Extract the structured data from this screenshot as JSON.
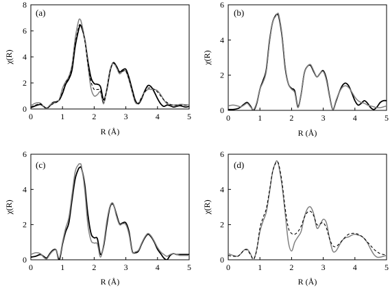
{
  "chart_data": [
    {
      "type": "line",
      "panel_label": "(a)",
      "xlabel": "R (Å)",
      "ylabel": "χ(R)",
      "xlim": [
        0,
        5
      ],
      "ylim": [
        0,
        8
      ],
      "xticks": [
        0,
        1,
        2,
        3,
        4,
        5
      ],
      "yticks": [
        0,
        2,
        4,
        6,
        8
      ],
      "series": [
        {
          "style": "black-solid",
          "color": "#000000",
          "x": [
            0,
            0.15,
            0.3,
            0.4,
            0.5,
            0.6,
            0.7,
            0.8,
            0.9,
            1.0,
            1.1,
            1.2,
            1.3,
            1.4,
            1.5,
            1.55,
            1.6,
            1.7,
            1.8,
            1.9,
            2.0,
            2.1,
            2.2,
            2.3,
            2.4,
            2.5,
            2.6,
            2.7,
            2.8,
            2.9,
            3.0,
            3.1,
            3.2,
            3.3,
            3.4,
            3.5,
            3.6,
            3.7,
            3.8,
            3.9,
            4.0,
            4.1,
            4.2,
            4.3,
            4.4,
            4.5,
            4.6,
            4.7,
            4.8,
            4.9,
            5.0
          ],
          "y": [
            0.1,
            0.25,
            0.35,
            0.2,
            0.05,
            0.25,
            0.5,
            0.55,
            0.7,
            1.2,
            1.9,
            2.3,
            3.0,
            4.8,
            6.0,
            6.4,
            6.3,
            5.4,
            3.7,
            2.4,
            1.95,
            1.9,
            1.7,
            0.7,
            1.5,
            2.9,
            3.55,
            3.3,
            2.85,
            3.0,
            3.05,
            2.4,
            1.5,
            0.65,
            0.4,
            0.8,
            1.4,
            1.8,
            1.7,
            1.3,
            0.8,
            0.4,
            0.2,
            0.3,
            0.25,
            0.15,
            0.2,
            0.25,
            0.2,
            0.15,
            0.2
          ]
        },
        {
          "style": "gray-solid",
          "color": "#808080",
          "x": [
            0,
            0.15,
            0.3,
            0.4,
            0.5,
            0.6,
            0.7,
            0.8,
            0.9,
            1.0,
            1.1,
            1.2,
            1.3,
            1.4,
            1.5,
            1.55,
            1.6,
            1.7,
            1.8,
            1.9,
            2.0,
            2.1,
            2.2,
            2.3,
            2.4,
            2.5,
            2.6,
            2.7,
            2.8,
            2.9,
            3.0,
            3.1,
            3.2,
            3.3,
            3.4,
            3.5,
            3.6,
            3.7,
            3.8,
            3.9,
            4.0,
            4.1,
            4.2,
            4.3,
            4.4,
            4.5,
            4.6,
            4.7,
            4.8,
            4.9,
            5.0
          ],
          "y": [
            0.25,
            0.45,
            0.45,
            0.2,
            0.0,
            0.3,
            0.45,
            0.5,
            0.75,
            1.6,
            2.1,
            2.5,
            3.4,
            5.4,
            6.7,
            6.9,
            6.6,
            5.4,
            3.4,
            1.6,
            1.0,
            1.1,
            1.3,
            0.4,
            1.6,
            3.0,
            3.5,
            3.2,
            2.7,
            2.9,
            2.9,
            2.2,
            1.3,
            0.5,
            0.45,
            0.9,
            1.3,
            1.5,
            1.5,
            1.5,
            1.4,
            1.1,
            0.7,
            0.4,
            0.35,
            0.3,
            0.3,
            0.35,
            0.35,
            0.3,
            0.35
          ]
        },
        {
          "style": "black-dashed",
          "color": "#000000",
          "x": [
            0,
            0.15,
            0.3,
            0.4,
            0.5,
            0.6,
            0.7,
            0.8,
            0.9,
            1.0,
            1.1,
            1.2,
            1.3,
            1.4,
            1.5,
            1.55,
            1.6,
            1.7,
            1.8,
            1.9,
            2.0,
            2.1,
            2.2,
            2.3,
            2.4,
            2.5,
            2.6,
            2.7,
            2.8,
            2.9,
            3.0,
            3.1,
            3.2,
            3.3,
            3.4,
            3.5,
            3.6,
            3.7,
            3.8,
            3.9,
            4.0,
            4.1,
            4.2,
            4.3,
            4.4,
            4.5,
            4.6,
            4.7,
            4.8,
            4.9,
            5.0
          ],
          "y": [
            0.15,
            0.3,
            0.4,
            0.2,
            0.05,
            0.2,
            0.4,
            0.5,
            0.7,
            1.3,
            2.0,
            2.4,
            3.2,
            5.0,
            6.2,
            6.5,
            6.3,
            5.3,
            3.5,
            2.1,
            1.5,
            1.5,
            1.4,
            0.5,
            1.5,
            2.9,
            3.5,
            3.3,
            2.8,
            2.9,
            2.9,
            2.3,
            1.4,
            0.6,
            0.45,
            0.9,
            1.3,
            1.6,
            1.6,
            1.5,
            1.3,
            1.0,
            0.7,
            0.5,
            0.35,
            0.3,
            0.3,
            0.3,
            0.3,
            0.3,
            0.3
          ]
        }
      ]
    },
    {
      "type": "line",
      "panel_label": "(b)",
      "xlabel": "R (Å)",
      "ylabel": "χ(R)",
      "xlim": [
        0,
        5
      ],
      "ylim": [
        0,
        6
      ],
      "xticks": [
        0,
        1,
        2,
        3,
        4,
        5
      ],
      "yticks": [
        0,
        2,
        4,
        6
      ],
      "series": [
        {
          "style": "black-solid",
          "color": "#000000",
          "x": [
            0,
            0.15,
            0.3,
            0.4,
            0.5,
            0.6,
            0.7,
            0.8,
            0.9,
            1.0,
            1.1,
            1.2,
            1.3,
            1.4,
            1.5,
            1.55,
            1.6,
            1.7,
            1.8,
            1.9,
            2.0,
            2.1,
            2.2,
            2.3,
            2.4,
            2.5,
            2.6,
            2.7,
            2.8,
            2.9,
            3.0,
            3.1,
            3.2,
            3.3,
            3.4,
            3.5,
            3.6,
            3.7,
            3.8,
            3.9,
            4.0,
            4.1,
            4.2,
            4.3,
            4.4,
            4.5,
            4.6,
            4.7,
            4.8,
            4.9,
            5.0
          ],
          "y": [
            0.05,
            0.05,
            0.1,
            0.2,
            0.35,
            0.45,
            0.25,
            0.0,
            0.4,
            1.2,
            1.7,
            2.3,
            3.9,
            5.0,
            5.4,
            5.45,
            5.3,
            4.2,
            2.4,
            1.5,
            1.25,
            1.1,
            0.2,
            0.9,
            2.1,
            2.5,
            2.55,
            2.2,
            1.9,
            2.1,
            2.25,
            1.8,
            0.8,
            0.05,
            0.5,
            1.0,
            1.4,
            1.55,
            1.4,
            1.0,
            0.55,
            0.3,
            0.4,
            0.55,
            0.4,
            0.15,
            0.05,
            0.2,
            0.45,
            0.55,
            0.55
          ]
        },
        {
          "style": "gray-solid",
          "color": "#808080",
          "x": [
            0,
            0.15,
            0.3,
            0.4,
            0.5,
            0.6,
            0.7,
            0.8,
            0.9,
            1.0,
            1.1,
            1.2,
            1.3,
            1.4,
            1.5,
            1.55,
            1.6,
            1.7,
            1.8,
            1.9,
            2.0,
            2.1,
            2.2,
            2.3,
            2.4,
            2.5,
            2.6,
            2.7,
            2.8,
            2.9,
            3.0,
            3.1,
            3.2,
            3.3,
            3.4,
            3.5,
            3.6,
            3.7,
            3.8,
            3.9,
            4.0,
            4.1,
            4.2,
            4.3,
            4.4,
            4.5,
            4.6,
            4.7,
            4.8,
            4.9,
            5.0
          ],
          "y": [
            0.25,
            0.3,
            0.25,
            0.2,
            0.3,
            0.4,
            0.2,
            0.05,
            0.45,
            1.2,
            1.6,
            2.2,
            3.8,
            5.0,
            5.35,
            5.5,
            5.4,
            4.3,
            2.5,
            1.5,
            1.2,
            1.0,
            0.15,
            0.9,
            2.1,
            2.5,
            2.6,
            2.25,
            1.9,
            2.1,
            2.2,
            1.7,
            0.75,
            0.05,
            0.55,
            1.0,
            1.3,
            1.4,
            1.3,
            1.05,
            0.75,
            0.55,
            0.45,
            0.4,
            0.3,
            0.25,
            0.2,
            0.15,
            0.15,
            0.2,
            0.25
          ]
        }
      ]
    },
    {
      "type": "line",
      "panel_label": "(c)",
      "xlabel": "R (Å)",
      "ylabel": "χ(R)",
      "xlim": [
        0,
        5
      ],
      "ylim": [
        0,
        6
      ],
      "xticks": [
        0,
        1,
        2,
        3,
        4,
        5
      ],
      "yticks": [
        0,
        2,
        4,
        6
      ],
      "series": [
        {
          "style": "black-solid",
          "color": "#000000",
          "x": [
            0,
            0.15,
            0.3,
            0.4,
            0.5,
            0.6,
            0.7,
            0.8,
            0.9,
            1.0,
            1.1,
            1.2,
            1.3,
            1.4,
            1.5,
            1.55,
            1.6,
            1.7,
            1.8,
            1.9,
            2.0,
            2.1,
            2.2,
            2.3,
            2.4,
            2.5,
            2.6,
            2.7,
            2.8,
            2.9,
            3.0,
            3.1,
            3.2,
            3.3,
            3.4,
            3.5,
            3.6,
            3.7,
            3.8,
            3.9,
            4.0,
            4.1,
            4.2,
            4.3,
            4.4,
            4.5,
            4.6,
            4.7,
            4.8,
            4.9,
            5.0
          ],
          "y": [
            0.15,
            0.2,
            0.3,
            0.2,
            0.1,
            0.35,
            0.55,
            0.55,
            0.0,
            0.9,
            1.6,
            2.1,
            3.4,
            4.6,
            5.15,
            5.25,
            5.2,
            4.3,
            2.6,
            1.5,
            1.25,
            1.2,
            0.3,
            0.8,
            2.0,
            3.0,
            3.15,
            2.6,
            2.05,
            2.1,
            2.1,
            1.6,
            0.5,
            0.4,
            0.5,
            0.9,
            1.25,
            1.45,
            1.3,
            1.0,
            0.6,
            0.35,
            0.1,
            0.0,
            0.25,
            0.35,
            0.3,
            0.3,
            0.3,
            0.3,
            0.3
          ]
        },
        {
          "style": "gray-solid",
          "color": "#808080",
          "x": [
            0,
            0.15,
            0.3,
            0.4,
            0.5,
            0.6,
            0.7,
            0.8,
            0.9,
            1.0,
            1.1,
            1.2,
            1.3,
            1.4,
            1.5,
            1.55,
            1.6,
            1.7,
            1.8,
            1.9,
            2.0,
            2.1,
            2.2,
            2.3,
            2.4,
            2.5,
            2.6,
            2.7,
            2.8,
            2.9,
            3.0,
            3.1,
            3.2,
            3.3,
            3.4,
            3.5,
            3.6,
            3.7,
            3.8,
            3.9,
            4.0,
            4.1,
            4.2,
            4.3,
            4.4,
            4.5,
            4.6,
            4.7,
            4.8,
            4.9,
            5.0
          ],
          "y": [
            0.3,
            0.4,
            0.35,
            0.15,
            0.05,
            0.3,
            0.5,
            0.55,
            0.1,
            1.0,
            1.8,
            2.4,
            3.7,
            5.0,
            5.4,
            5.45,
            5.3,
            4.0,
            2.0,
            1.1,
            0.95,
            0.9,
            0.15,
            0.9,
            2.2,
            3.05,
            3.2,
            2.5,
            2.0,
            2.05,
            2.0,
            1.45,
            0.45,
            0.45,
            0.55,
            0.95,
            1.3,
            1.5,
            1.35,
            1.05,
            0.7,
            0.45,
            0.3,
            0.2,
            0.3,
            0.35,
            0.3,
            0.25,
            0.25,
            0.25,
            0.25
          ]
        }
      ]
    },
    {
      "type": "line",
      "panel_label": "(d)",
      "xlabel": "R (Å)",
      "ylabel": "χ(R)",
      "xlim": [
        0,
        5
      ],
      "ylim": [
        0,
        6
      ],
      "xticks": [
        0,
        1,
        2,
        3,
        4,
        5
      ],
      "yticks": [
        0,
        2,
        4,
        6
      ],
      "series": [
        {
          "style": "gray-solid",
          "color": "#808080",
          "x": [
            0,
            0.15,
            0.3,
            0.4,
            0.5,
            0.6,
            0.7,
            0.8,
            0.9,
            1.0,
            1.1,
            1.2,
            1.3,
            1.4,
            1.5,
            1.55,
            1.6,
            1.7,
            1.8,
            1.9,
            2.0,
            2.1,
            2.2,
            2.3,
            2.4,
            2.5,
            2.6,
            2.7,
            2.8,
            2.9,
            3.0,
            3.1,
            3.2,
            3.3,
            3.4,
            3.5,
            3.6,
            3.7,
            3.8,
            3.9,
            4.0,
            4.1,
            4.2,
            4.3,
            4.4,
            4.5,
            4.6,
            4.7,
            4.8,
            4.9,
            5.0
          ],
          "y": [
            0.35,
            0.25,
            0.2,
            0.35,
            0.55,
            0.6,
            0.35,
            0.0,
            0.6,
            1.6,
            2.2,
            2.7,
            3.8,
            5.0,
            5.55,
            5.6,
            5.3,
            4.2,
            2.6,
            1.0,
            0.5,
            1.0,
            1.3,
            1.6,
            2.4,
            2.9,
            3.0,
            2.6,
            1.8,
            2.0,
            2.3,
            2.1,
            1.2,
            0.5,
            0.5,
            0.8,
            1.1,
            1.25,
            1.3,
            1.4,
            1.45,
            1.4,
            1.35,
            1.2,
            0.95,
            0.6,
            0.3,
            0.15,
            0.15,
            0.2,
            0.25
          ]
        },
        {
          "style": "black-dashed",
          "color": "#000000",
          "x": [
            0,
            0.15,
            0.3,
            0.4,
            0.5,
            0.6,
            0.7,
            0.8,
            0.9,
            1.0,
            1.1,
            1.2,
            1.3,
            1.4,
            1.5,
            1.55,
            1.6,
            1.7,
            1.8,
            1.9,
            2.0,
            2.1,
            2.2,
            2.3,
            2.4,
            2.5,
            2.6,
            2.7,
            2.8,
            2.9,
            3.0,
            3.1,
            3.2,
            3.3,
            3.4,
            3.5,
            3.6,
            3.7,
            3.8,
            3.9,
            4.0,
            4.1,
            4.2,
            4.3,
            4.4,
            4.5,
            4.6,
            4.7,
            4.8,
            4.9,
            5.0
          ],
          "y": [
            0.25,
            0.2,
            0.2,
            0.35,
            0.55,
            0.55,
            0.3,
            0.05,
            0.55,
            1.8,
            2.4,
            2.9,
            3.9,
            5.0,
            5.5,
            5.55,
            5.4,
            4.4,
            2.9,
            1.8,
            1.5,
            1.45,
            1.6,
            1.9,
            2.4,
            2.7,
            2.75,
            2.5,
            2.0,
            2.05,
            2.1,
            1.8,
            1.2,
            0.8,
            0.75,
            0.9,
            1.1,
            1.3,
            1.45,
            1.5,
            1.5,
            1.45,
            1.35,
            1.2,
            1.0,
            0.8,
            0.6,
            0.45,
            0.35,
            0.3,
            0.3
          ]
        }
      ]
    }
  ]
}
